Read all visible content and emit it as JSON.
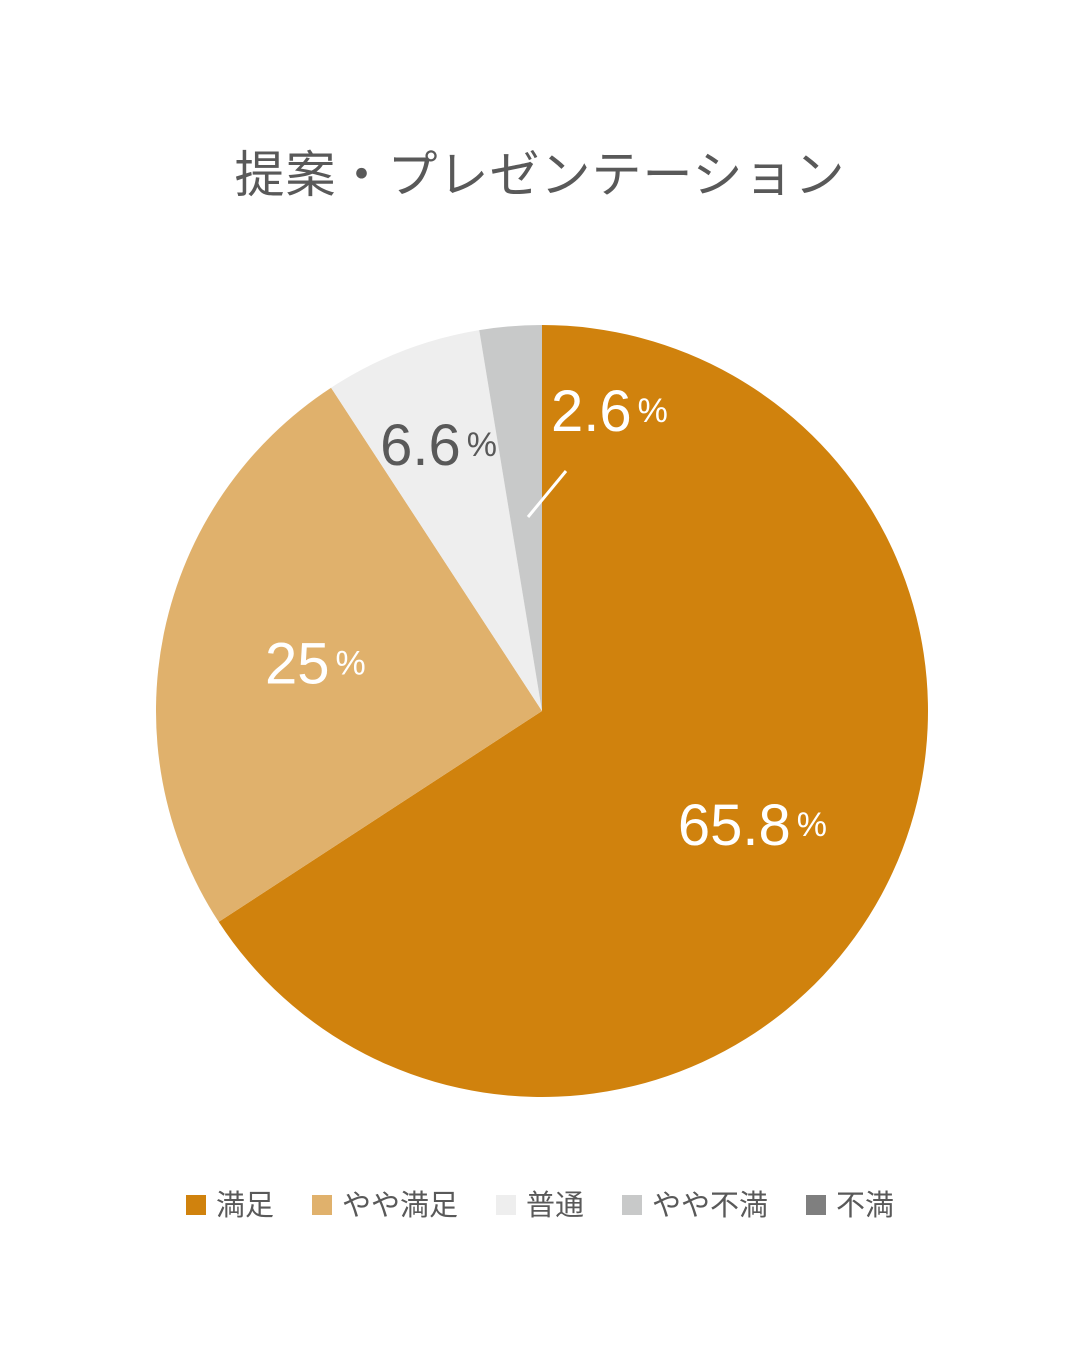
{
  "chart_data": {
    "type": "pie",
    "title": "提案・プレゼンテーション",
    "categories": [
      "満足",
      "やや満足",
      "普通",
      "やや不満",
      "不満"
    ],
    "values": [
      65.8,
      25,
      6.6,
      2.6,
      0
    ],
    "labels": [
      "65.8",
      "25",
      "6.6",
      "2.6",
      ""
    ],
    "unit": "%",
    "colors": [
      "#D0820D",
      "#E0B16C",
      "#EEEEEE",
      "#C8C9C9",
      "#7F7F7F"
    ],
    "label_colors": [
      "#FFFFFF",
      "#FFFFFF",
      "#595959",
      "#FFFFFF",
      "#FFFFFF"
    ],
    "legend_placement": "bottom",
    "start": "12 o'clock",
    "direction": "clockwise"
  }
}
